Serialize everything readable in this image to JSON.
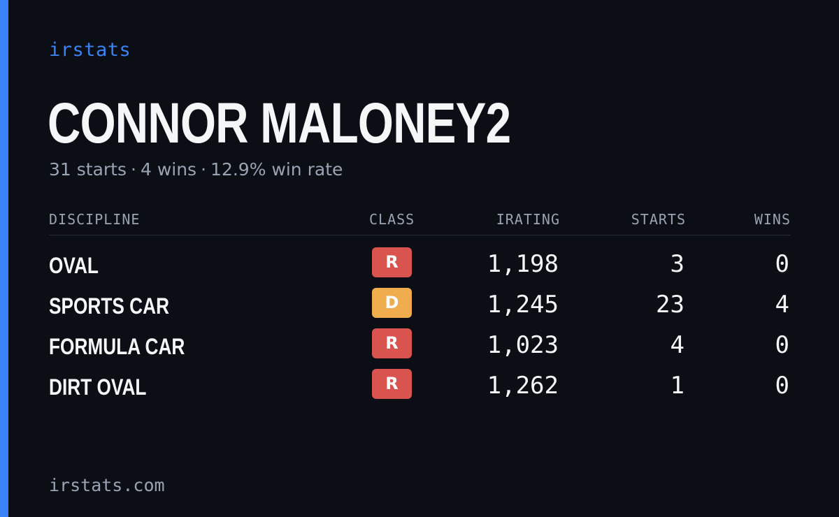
{
  "brand": "irstats",
  "driver": {
    "name": "CONNOR MALONEY2",
    "summary": {
      "starts": "31 starts",
      "wins": "4 wins",
      "win_rate": "12.9% win rate",
      "separator": "·"
    }
  },
  "table": {
    "headers": {
      "discipline": "DISCIPLINE",
      "class": "CLASS",
      "irating": "IRATING",
      "starts": "STARTS",
      "wins": "WINS"
    },
    "rows": [
      {
        "discipline": "OVAL",
        "class": "R",
        "class_color": "#d9534f",
        "irating": "1,198",
        "starts": "3",
        "wins": "0"
      },
      {
        "discipline": "SPORTS CAR",
        "class": "D",
        "class_color": "#f0ad4e",
        "irating": "1,245",
        "starts": "23",
        "wins": "4"
      },
      {
        "discipline": "FORMULA CAR",
        "class": "R",
        "class_color": "#d9534f",
        "irating": "1,023",
        "starts": "4",
        "wins": "0"
      },
      {
        "discipline": "DIRT OVAL",
        "class": "R",
        "class_color": "#d9534f",
        "irating": "1,262",
        "starts": "1",
        "wins": "0"
      }
    ]
  },
  "footer": "irstats.com",
  "colors": {
    "background": "#0b0e14",
    "accent": "#3b82f6",
    "text": "#f5f6f8",
    "muted": "#9aa3b2"
  }
}
